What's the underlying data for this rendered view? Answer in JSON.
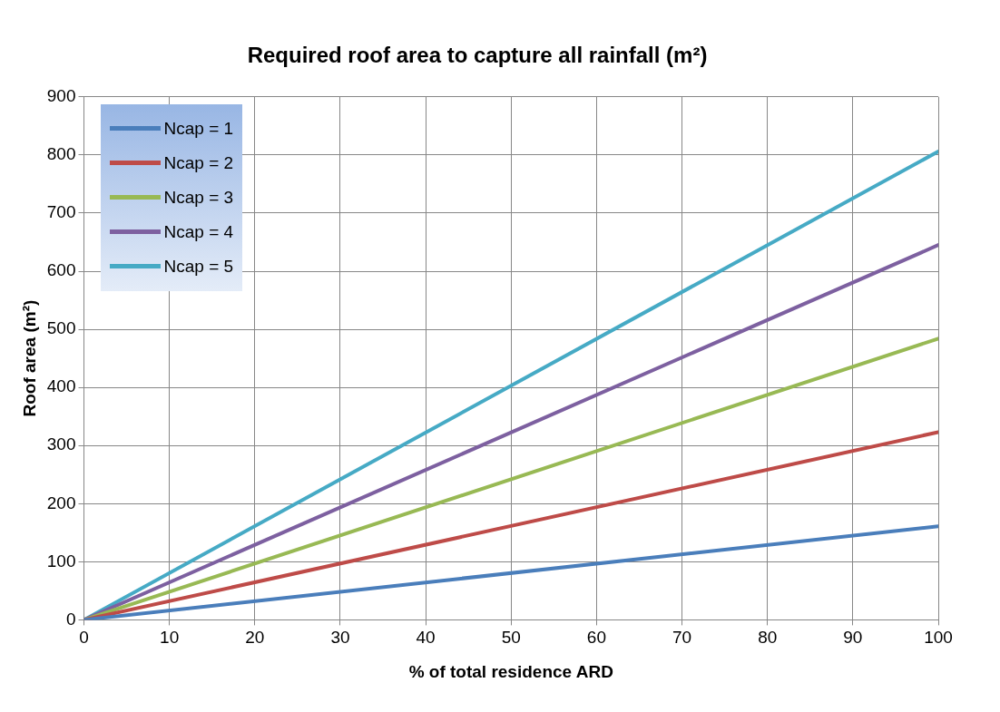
{
  "chart_data": {
    "type": "line",
    "title": "Required roof area to capture all rainfall (m²)",
    "xlabel": "% of total residence ARD",
    "ylabel": "Roof area (m²)",
    "x": [
      0,
      100
    ],
    "xlim": [
      0,
      100
    ],
    "xticks": [
      0,
      10,
      20,
      30,
      40,
      50,
      60,
      70,
      80,
      90,
      100
    ],
    "ylim": [
      0,
      900
    ],
    "yticks": [
      0,
      100,
      200,
      300,
      400,
      500,
      600,
      700,
      800,
      900
    ],
    "grid": true,
    "legend": "top left",
    "marker": "none",
    "line_style": "solid",
    "series": [
      {
        "name": "Ncap = 1",
        "color": "#4a7ebb",
        "values": [
          0,
          161
        ]
      },
      {
        "name": "Ncap = 2",
        "color": "#be4b48",
        "values": [
          0,
          323
        ]
      },
      {
        "name": "Ncap = 3",
        "color": "#98b954",
        "values": [
          0,
          484
        ]
      },
      {
        "name": "Ncap = 4",
        "color": "#7d60a0",
        "values": [
          0,
          645
        ]
      },
      {
        "name": "Ncap = 5",
        "color": "#46aac5",
        "values": [
          0,
          806
        ]
      }
    ]
  }
}
